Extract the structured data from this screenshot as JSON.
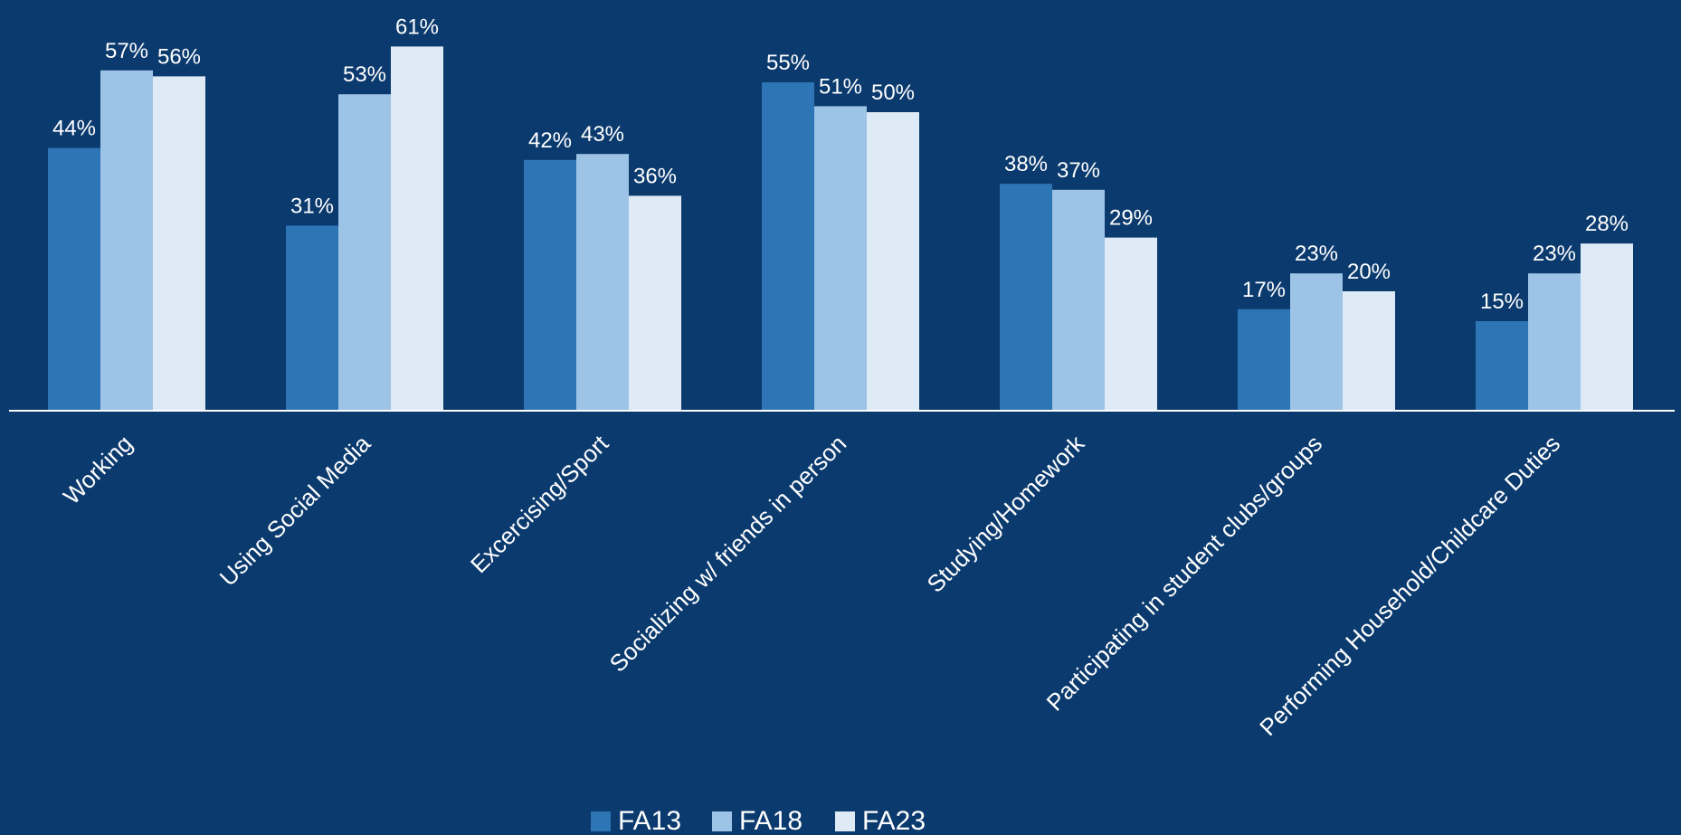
{
  "chart_data": {
    "type": "bar",
    "categories": [
      "Working",
      "Using Social Media",
      "Excercising/Sport",
      "Socializing w/ friends in person",
      "Studying/Homework",
      "Participating in student clubs/groups",
      "Performing Household/Childcare Duties"
    ],
    "series": [
      {
        "name": "FA13",
        "color": "#2e75b6",
        "values": [
          44,
          31,
          42,
          55,
          38,
          17,
          15
        ],
        "value_labels": [
          "44%",
          "31%",
          "42%",
          "55%",
          "38%",
          "17%",
          "15%"
        ]
      },
      {
        "name": "FA18",
        "color": "#9dc3e6",
        "values": [
          57,
          53,
          43,
          51,
          37,
          23,
          23
        ],
        "value_labels": [
          "57%",
          "53%",
          "43%",
          "51%",
          "37%",
          "23%",
          "23%"
        ]
      },
      {
        "name": "FA23",
        "color": "#deebf7",
        "values": [
          56,
          61,
          36,
          50,
          29,
          20,
          28
        ],
        "value_labels": [
          "56%",
          "61%",
          "36%",
          "50%",
          "29%",
          "20%",
          "28%"
        ]
      }
    ],
    "legend": "bottom"
  }
}
